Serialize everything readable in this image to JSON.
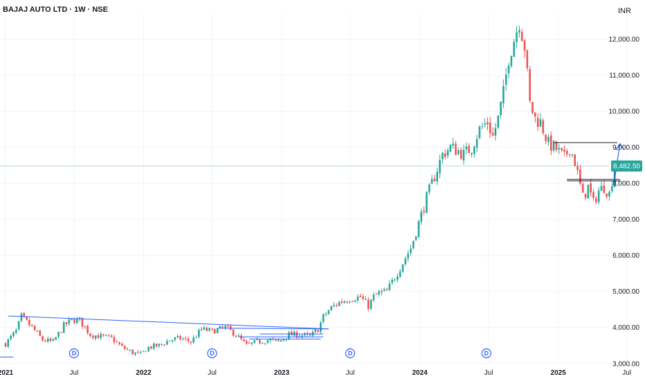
{
  "header": {
    "title": "BAJAJ AUTO LTD · 1W · NSE",
    "currency": "INR"
  },
  "colors": {
    "up": "#26a69a",
    "down": "#ef5350",
    "trendline": "#2962ff",
    "level": "#131722",
    "arrow": "#2962ff",
    "grid": "#f0f3fa"
  },
  "chart_data": {
    "type": "candlestick",
    "title": "BAJAJ AUTO LTD · 1W · NSE",
    "y_unit": "INR",
    "ylim": [
      2880,
      12800
    ],
    "xlim": [
      "2021-01-01",
      "2025-07-20"
    ],
    "y_ticks": [
      3000,
      4000,
      5000,
      6000,
      7000,
      8000,
      9000,
      10000,
      11000,
      12000
    ],
    "y_tick_labels": [
      "3,000.00",
      "4,000.00",
      "5,000.00",
      "6,000.00",
      "7,000.00",
      "8,000.00",
      "9,000.00",
      "10,000.00",
      "11,000.00",
      "12,000.00"
    ],
    "x_ticks": [
      {
        "label": "2021",
        "date": "2021-01-01",
        "bold": true
      },
      {
        "label": "Jul",
        "date": "2021-07-01",
        "bold": false
      },
      {
        "label": "2022",
        "date": "2022-01-01",
        "bold": true
      },
      {
        "label": "Jul",
        "date": "2022-07-01",
        "bold": false
      },
      {
        "label": "2023",
        "date": "2023-01-01",
        "bold": true
      },
      {
        "label": "Jul",
        "date": "2023-07-01",
        "bold": false
      },
      {
        "label": "2024",
        "date": "2024-01-01",
        "bold": true
      },
      {
        "label": "Jul",
        "date": "2024-07-01",
        "bold": false
      },
      {
        "label": "2025",
        "date": "2025-01-01",
        "bold": true
      },
      {
        "label": "Jul",
        "date": "2025-07-01",
        "bold": false
      }
    ],
    "last_price": 8482.5,
    "last_price_label": "8,482.50",
    "dividends": [
      {
        "date": "2021-07-01",
        "label": "D"
      },
      {
        "date": "2022-07-01",
        "label": "D"
      },
      {
        "date": "2023-07-01",
        "label": "D"
      },
      {
        "date": "2024-06-25",
        "label": "D"
      }
    ],
    "anchors": [
      [
        "2021-01-01",
        3550
      ],
      [
        "2021-01-29",
        3900
      ],
      [
        "2021-02-12",
        4300
      ],
      [
        "2021-03-12",
        4000
      ],
      [
        "2021-04-09",
        3650
      ],
      [
        "2021-05-07",
        3600
      ],
      [
        "2021-06-04",
        4050
      ],
      [
        "2021-06-25",
        4200
      ],
      [
        "2021-07-16",
        4200
      ],
      [
        "2021-08-13",
        3800
      ],
      [
        "2021-09-10",
        3750
      ],
      [
        "2021-10-08",
        3700
      ],
      [
        "2021-11-05",
        3450
      ],
      [
        "2021-12-03",
        3300
      ],
      [
        "2021-12-24",
        3250
      ],
      [
        "2022-01-14",
        3450
      ],
      [
        "2022-02-11",
        3500
      ],
      [
        "2022-03-11",
        3650
      ],
      [
        "2022-04-08",
        3700
      ],
      [
        "2022-05-06",
        3600
      ],
      [
        "2022-06-03",
        3950
      ],
      [
        "2022-07-01",
        3900
      ],
      [
        "2022-08-05",
        4000
      ],
      [
        "2022-09-02",
        3800
      ],
      [
        "2022-09-30",
        3500
      ],
      [
        "2022-10-28",
        3600
      ],
      [
        "2022-11-25",
        3650
      ],
      [
        "2022-12-23",
        3600
      ],
      [
        "2023-01-20",
        3800
      ],
      [
        "2023-02-17",
        3800
      ],
      [
        "2023-03-17",
        3750
      ],
      [
        "2023-04-07",
        3950
      ],
      [
        "2023-04-21",
        4300
      ],
      [
        "2023-05-12",
        4550
      ],
      [
        "2023-06-02",
        4700
      ],
      [
        "2023-06-30",
        4800
      ],
      [
        "2023-07-28",
        4850
      ],
      [
        "2023-08-18",
        4600
      ],
      [
        "2023-09-01",
        4850
      ],
      [
        "2023-09-15",
        4950
      ],
      [
        "2023-10-06",
        5000
      ],
      [
        "2023-10-27",
        5400
      ],
      [
        "2023-11-17",
        5800
      ],
      [
        "2023-12-08",
        6200
      ],
      [
        "2023-12-29",
        6900
      ],
      [
        "2024-01-19",
        7600
      ],
      [
        "2024-02-09",
        8200
      ],
      [
        "2024-03-01",
        8800
      ],
      [
        "2024-03-22",
        9000
      ],
      [
        "2024-04-12",
        8900
      ],
      [
        "2024-04-26",
        8800
      ],
      [
        "2024-05-17",
        9000
      ],
      [
        "2024-06-07",
        9500
      ],
      [
        "2024-06-28",
        9700
      ],
      [
        "2024-07-12",
        9300
      ],
      [
        "2024-07-26",
        9800
      ],
      [
        "2024-08-09",
        10500
      ],
      [
        "2024-08-23",
        11500
      ],
      [
        "2024-09-06",
        12000
      ],
      [
        "2024-09-20",
        12500
      ],
      [
        "2024-10-04",
        11800
      ],
      [
        "2024-10-18",
        10200
      ],
      [
        "2024-11-01",
        9800
      ],
      [
        "2024-11-15",
        9700
      ],
      [
        "2024-12-06",
        9100
      ],
      [
        "2024-12-27",
        8950
      ],
      [
        "2025-01-17",
        8700
      ],
      [
        "2025-01-31",
        9000
      ],
      [
        "2025-02-14",
        8600
      ],
      [
        "2025-03-07",
        7600
      ],
      [
        "2025-03-21",
        7900
      ],
      [
        "2025-04-04",
        7450
      ],
      [
        "2025-04-18",
        7800
      ],
      [
        "2025-05-02",
        7900
      ],
      [
        "2025-05-16",
        7700
      ],
      [
        "2025-05-30",
        8482.5
      ]
    ],
    "trendlines": [
      {
        "start": [
          "2021-01-08",
          4320
        ],
        "end": [
          "2023-05-05",
          3960
        ]
      },
      {
        "start": [
          "2022-07-15",
          3980
        ],
        "end": [
          "2023-05-05",
          3960
        ]
      },
      {
        "start": [
          "2022-11-04",
          3820
        ],
        "end": [
          "2023-04-21",
          3820
        ]
      },
      {
        "start": [
          "2022-09-09",
          3740
        ],
        "end": [
          "2023-04-21",
          3740
        ]
      },
      {
        "start": [
          "2022-10-07",
          3680
        ],
        "end": [
          "2023-04-14",
          3680
        ]
      },
      {
        "start": [
          "2020-12-10",
          3180
        ],
        "end": [
          "2021-01-22",
          3180
        ]
      }
    ],
    "levels": [
      {
        "start": [
          "2024-12-20",
          9130
        ],
        "end": [
          "2025-06-06",
          9130
        ]
      },
      {
        "start": [
          "2025-01-24",
          8070
        ],
        "end": [
          "2025-06-13",
          8070
        ]
      },
      {
        "start": [
          "2025-01-24",
          8110
        ],
        "end": [
          "2025-06-13",
          8110
        ]
      }
    ],
    "projection_arrow": {
      "start": [
        "2025-05-30",
        8100
      ],
      "end": [
        "2025-06-13",
        9100
      ]
    }
  }
}
